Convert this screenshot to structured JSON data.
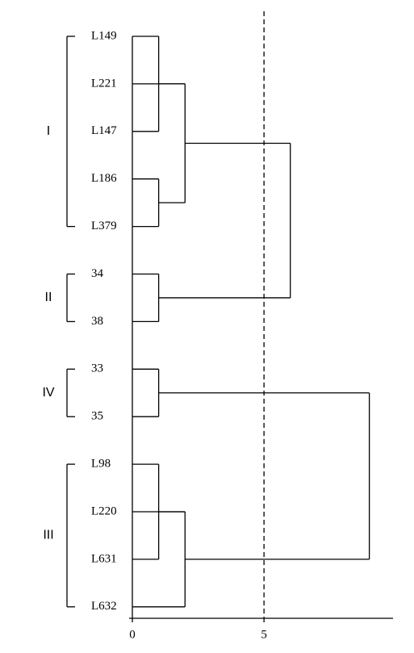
{
  "chart_data": {
    "type": "dendrogram",
    "leaves": [
      "L149",
      "L221",
      "L147",
      "L186",
      "L379",
      "34",
      "38",
      "33",
      "35",
      "L98",
      "L220",
      "L631",
      "L632"
    ],
    "merges": [
      {
        "leaves": [
          0,
          2
        ],
        "merges": [],
        "height": 1
      },
      {
        "leaves": [
          3,
          4
        ],
        "merges": [],
        "height": 1
      },
      {
        "leaves": [
          1
        ],
        "merges": [
          0,
          1
        ],
        "height": 2
      },
      {
        "leaves": [
          5,
          6
        ],
        "merges": [],
        "height": 1
      },
      {
        "leaves": [],
        "merges": [
          2,
          3
        ],
        "height": 6
      },
      {
        "leaves": [
          7,
          8
        ],
        "merges": [],
        "height": 1
      },
      {
        "leaves": [
          9,
          11
        ],
        "merges": [],
        "height": 1
      },
      {
        "leaves": [
          10,
          12
        ],
        "merges": [
          6
        ],
        "height": 2
      },
      {
        "leaves": [],
        "merges": [
          5,
          7
        ],
        "height": 9
      }
    ],
    "groups": [
      {
        "label": "I",
        "from": 0,
        "to": 4
      },
      {
        "label": "II",
        "from": 5,
        "to": 6
      },
      {
        "label": "IV",
        "from": 7,
        "to": 8
      },
      {
        "label": "III",
        "from": 9,
        "to": 12
      }
    ],
    "cutoff": 5,
    "xlim": [
      0,
      9.9
    ],
    "xticks": [
      0,
      5
    ],
    "color": "#000000"
  }
}
